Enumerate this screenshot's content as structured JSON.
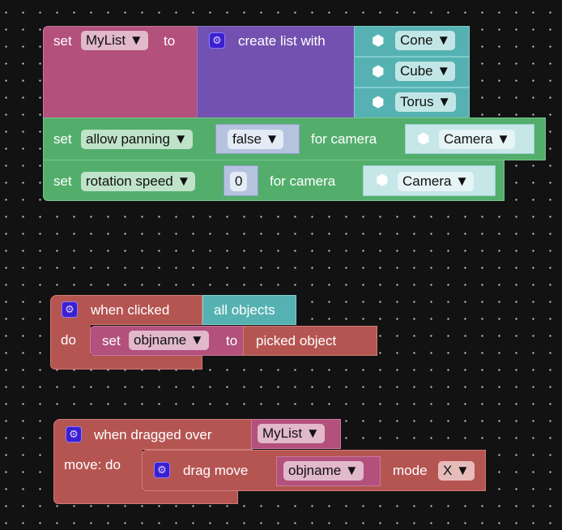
{
  "block_set_list": {
    "set": "set",
    "var": "MyList ▼",
    "to": "to"
  },
  "create_list": {
    "label": "create list with",
    "items": [
      "Cone ▼",
      "Cube ▼",
      "Torus ▼"
    ]
  },
  "set_panning": {
    "set": "set",
    "prop": "allow panning ▼",
    "value": "false ▼",
    "for": "for camera",
    "camera": "Camera ▼"
  },
  "set_rotation": {
    "set": "set",
    "prop": "rotation speed ▼",
    "value": "0",
    "for": "for camera",
    "camera": "Camera ▼"
  },
  "when_clicked": {
    "label": "when clicked",
    "target": "all objects",
    "do": "do",
    "set": "set",
    "var": "objname ▼",
    "to": "to",
    "value": "picked object"
  },
  "when_dragged": {
    "label": "when dragged over",
    "target": "MyList ▼",
    "do": "move: do",
    "action": "drag move",
    "var": "objname ▼",
    "mode": "mode",
    "mode_value": "X ▼"
  },
  "icons": {
    "gear": "gear-icon",
    "cube": "cube-icon"
  },
  "colors": {
    "variables": "#b3507c",
    "lists": "#7351b0",
    "objects": "#56b2b2",
    "camera": "#53ae6c",
    "events": "#b55552",
    "background": "#121212"
  }
}
